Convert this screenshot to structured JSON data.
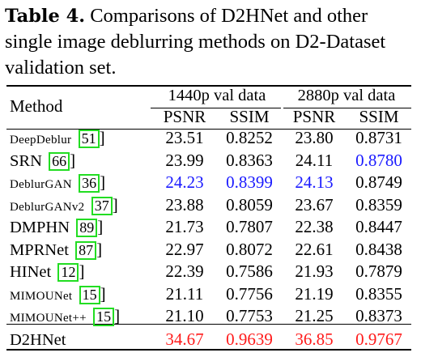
{
  "caption": {
    "label": "Table 4.",
    "text": " Comparisons of D2HNet and other single image deblurring methods on D2-Dataset validation set."
  },
  "table": {
    "method_header": "Method",
    "groups": [
      "1440p val data",
      "2880p val data"
    ],
    "metrics": [
      "PSNR",
      "SSIM",
      "PSNR",
      "SSIM"
    ],
    "rows": [
      {
        "method": "DeepDeblur",
        "cite": "51",
        "tail": "]",
        "psnr1": "23.51",
        "ssim1": "0.8252",
        "psnr2": "23.80",
        "ssim2": "0.8731"
      },
      {
        "method": "SRN",
        "cite": "66",
        "tail": "]",
        "psnr1": "23.99",
        "ssim1": "0.8363",
        "psnr2": "24.11",
        "ssim2": "0.8780"
      },
      {
        "method": "DeblurGAN",
        "cite": "36",
        "tail": "]",
        "psnr1": "24.23",
        "ssim1": "0.8399",
        "psnr2": "24.13",
        "ssim2": "0.8749"
      },
      {
        "method": "DeblurGANv2",
        "cite": "37",
        "tail": "]",
        "psnr1": "23.88",
        "ssim1": "0.8059",
        "psnr2": "23.67",
        "ssim2": "0.8359"
      },
      {
        "method": "DMPHN",
        "cite": "89",
        "tail": "]",
        "psnr1": "21.73",
        "ssim1": "0.7807",
        "psnr2": "22.38",
        "ssim2": "0.8447"
      },
      {
        "method": "MPRNet",
        "cite": "87",
        "tail": "]",
        "psnr1": "22.97",
        "ssim1": "0.8072",
        "psnr2": "22.61",
        "ssim2": "0.8438"
      },
      {
        "method": "HINet",
        "cite": "12",
        "tail": "]",
        "psnr1": "22.39",
        "ssim1": "0.7586",
        "psnr2": "21.93",
        "ssim2": "0.7879"
      },
      {
        "method": "MIMOUNet",
        "cite": "15",
        "tail": "]",
        "psnr1": "21.11",
        "ssim1": "0.7756",
        "psnr2": "21.19",
        "ssim2": "0.8355"
      },
      {
        "method": "MIMOUNet++",
        "cite": "15",
        "tail": "]",
        "psnr1": "21.10",
        "ssim1": "0.7753",
        "psnr2": "21.25",
        "ssim2": "0.8373"
      }
    ],
    "final": {
      "method": "D2HNet",
      "psnr1": "34.67",
      "ssim1": "0.9639",
      "psnr2": "36.85",
      "ssim2": "0.9767"
    },
    "colors": {
      "best": "#ff1a1a",
      "second": "#1a1aff",
      "citation_box": "#22dd22"
    }
  }
}
